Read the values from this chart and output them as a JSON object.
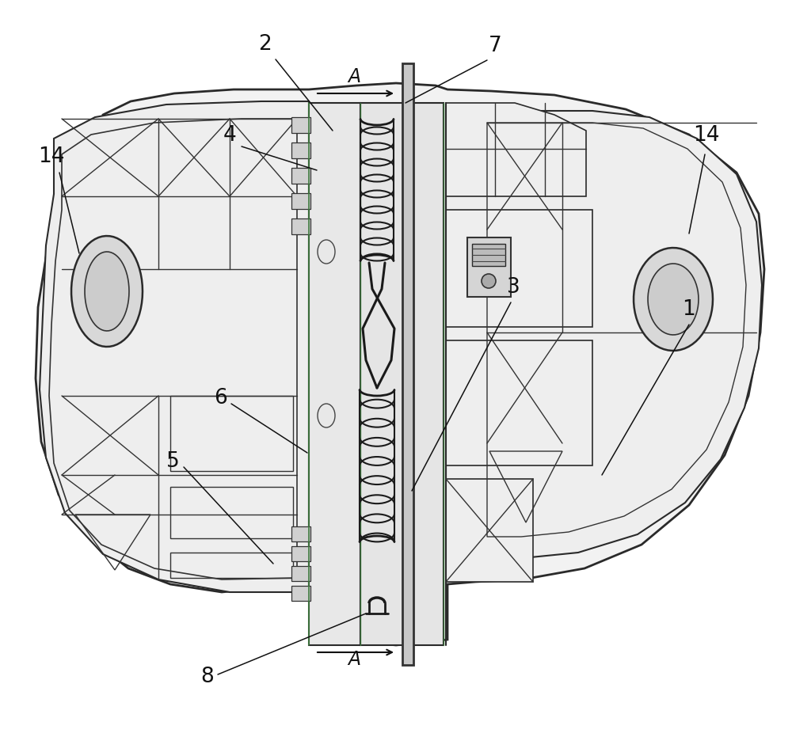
{
  "bg": "#ffffff",
  "lc": "#1c1c1c",
  "glc": "#3d7a3d",
  "lc2": "#555555",
  "fig_w": 10.0,
  "fig_h": 9.31,
  "dpi": 100,
  "label_fs": 19,
  "label_color": "#111111"
}
